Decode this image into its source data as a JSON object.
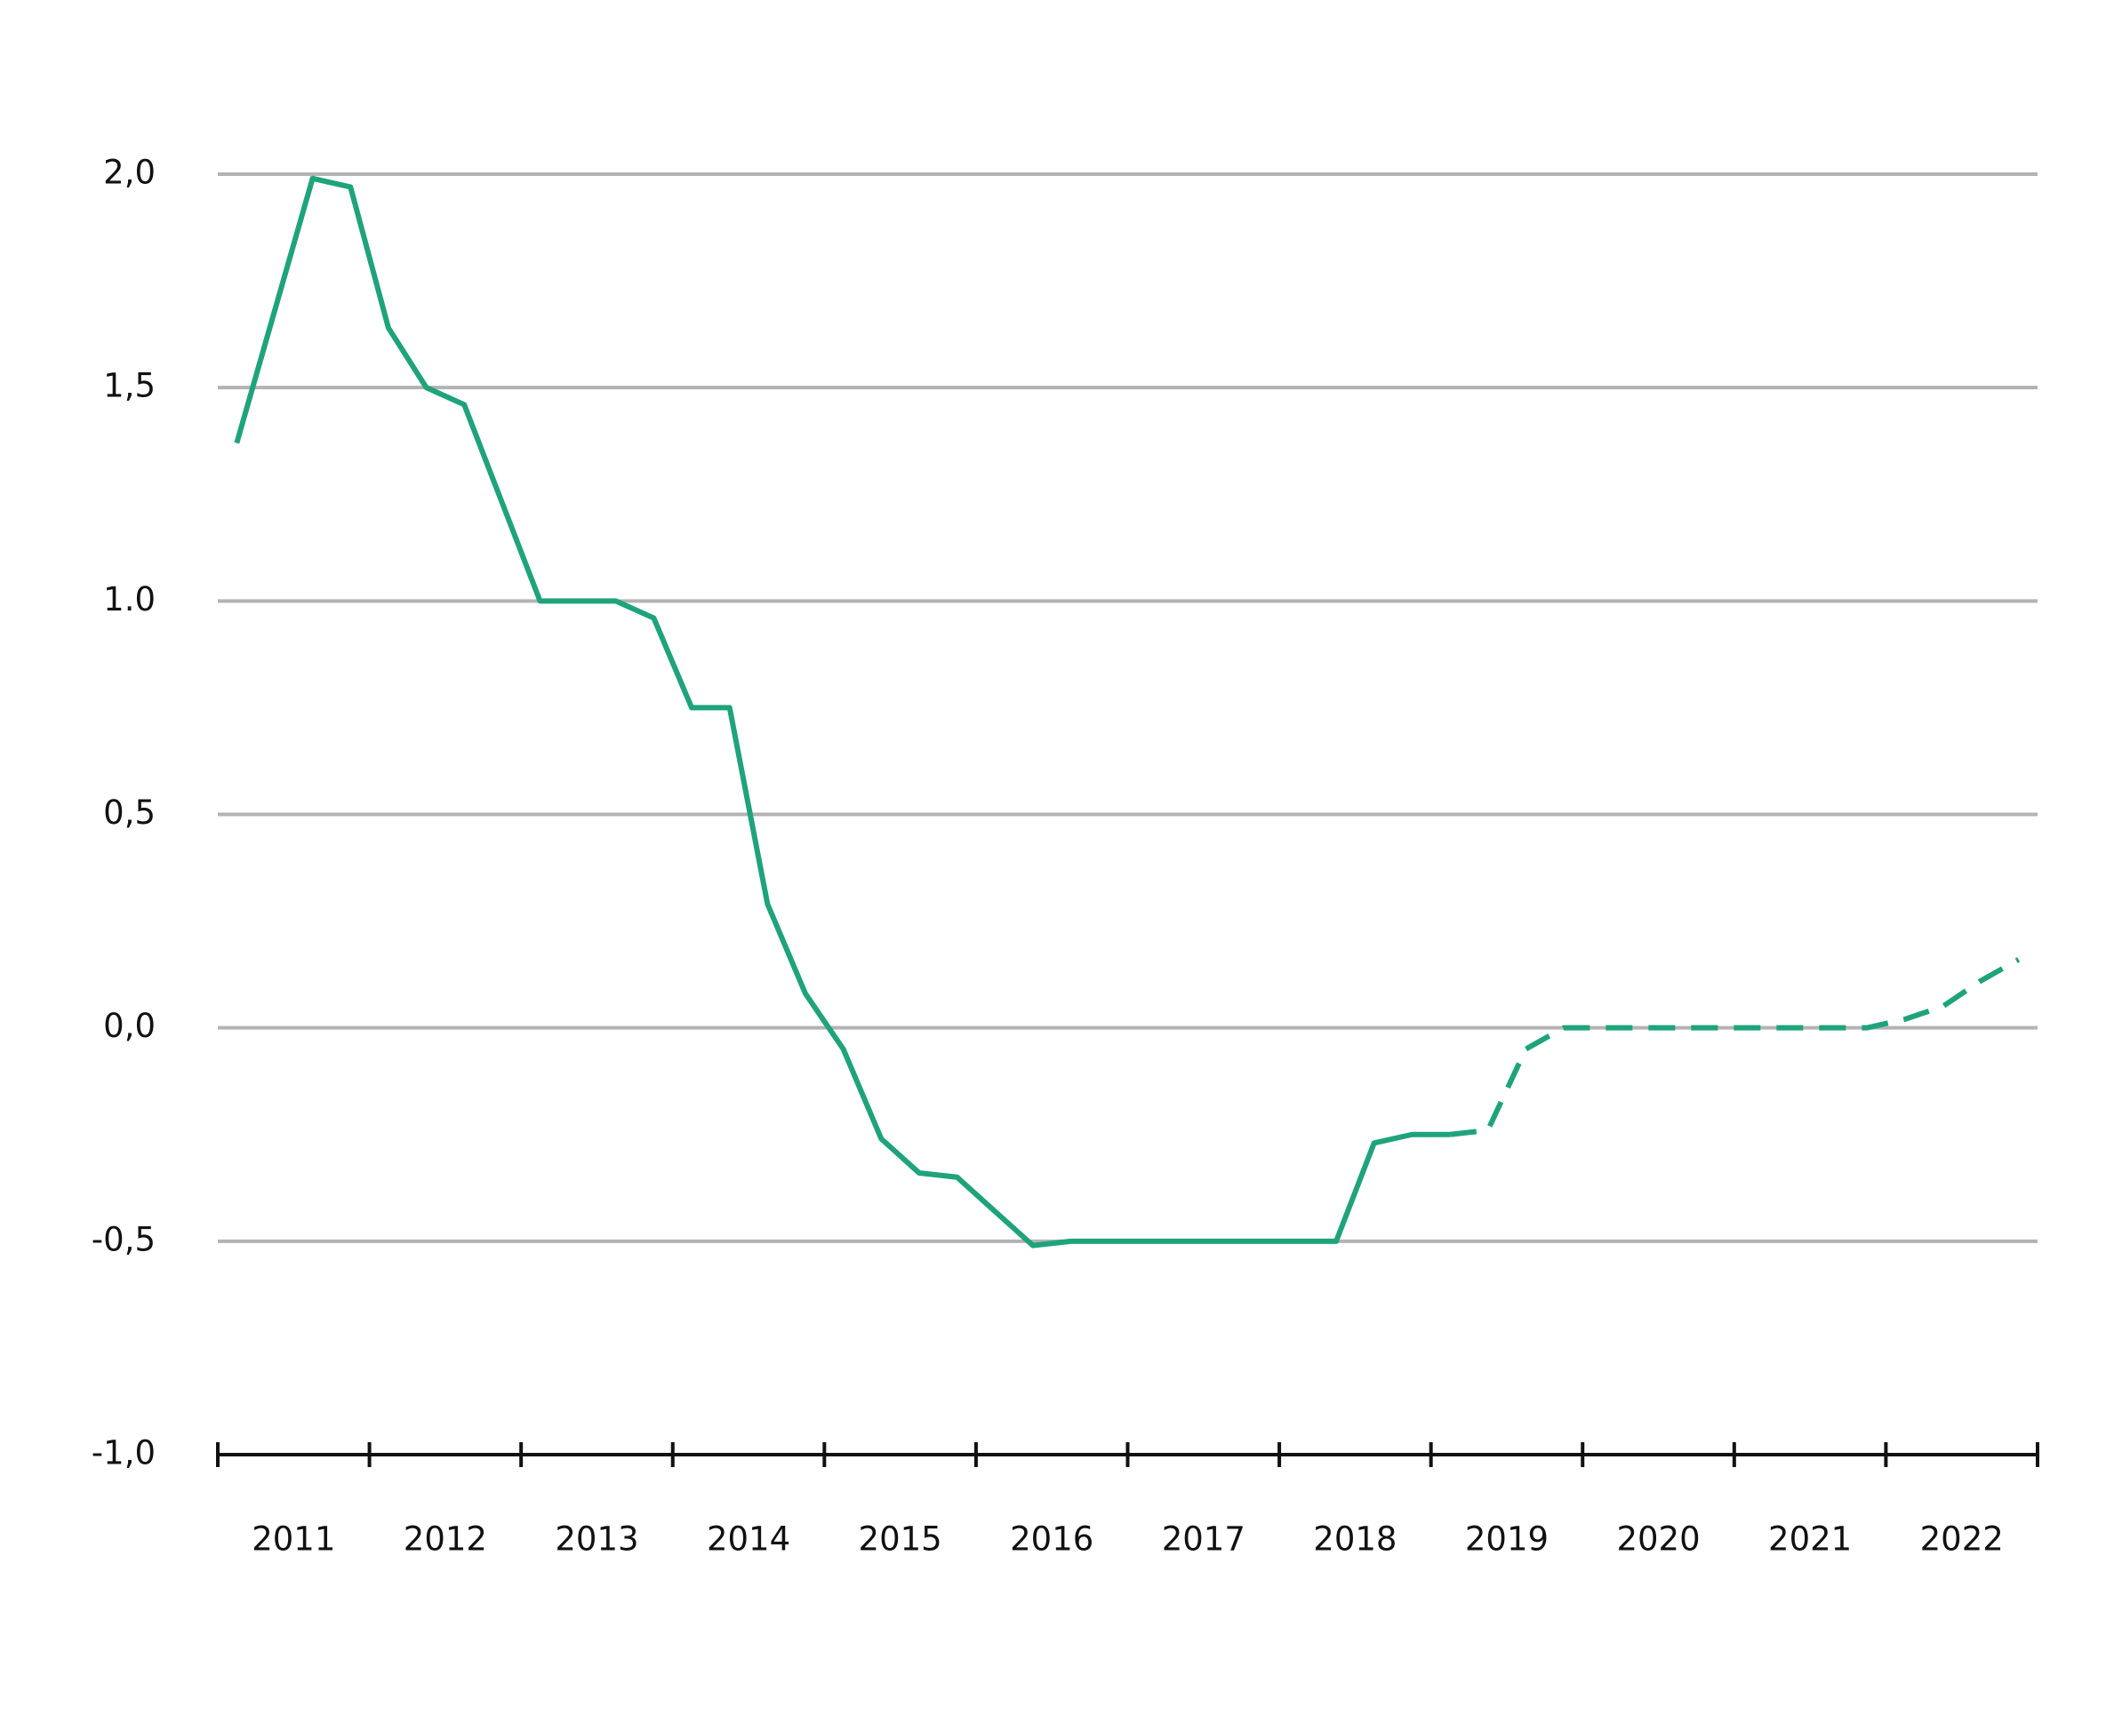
{
  "chart_data": {
    "type": "line",
    "series": [
      {
        "color": "#1fa37c",
        "style": "solid",
        "x": [
          2011.125,
          2011.375,
          2011.625,
          2011.875,
          2012.125,
          2012.375,
          2012.625,
          2012.875,
          2013.125,
          2013.375,
          2013.625,
          2013.875,
          2014.125,
          2014.375,
          2014.625,
          2014.875,
          2015.125,
          2015.375,
          2015.625,
          2015.875,
          2016.125,
          2016.375,
          2016.625,
          2016.875,
          2017.125,
          2017.375,
          2017.625,
          2017.875,
          2018.125,
          2018.375,
          2018.625,
          2018.875,
          2019.125
        ],
        "values": [
          1.37,
          1.68,
          1.99,
          1.97,
          1.64,
          1.5,
          1.46,
          1.23,
          1.0,
          1.0,
          1.0,
          0.96,
          0.75,
          0.75,
          0.29,
          0.08,
          -0.05,
          -0.26,
          -0.34,
          -0.35,
          -0.43,
          -0.51,
          -0.5,
          -0.5,
          -0.5,
          -0.5,
          -0.5,
          -0.5,
          -0.5,
          -0.5,
          -0.27,
          -0.25,
          -0.25
        ]
      },
      {
        "color": "#1fa37c",
        "style": "dashed",
        "x": [
          2019.125,
          2019.375,
          2019.625,
          2019.875,
          2020.125,
          2020.375,
          2020.625,
          2020.875,
          2021.125,
          2021.375,
          2021.625,
          2021.875,
          2022.125,
          2022.375,
          2022.625,
          2022.875
        ],
        "values": [
          -0.25,
          -0.24,
          -0.05,
          0,
          0,
          0,
          0,
          0,
          0,
          0,
          0,
          0,
          0.02,
          0.05,
          0.11,
          0.16
        ]
      }
    ],
    "xlim": [
      2011,
      2023
    ],
    "xticks": [
      {
        "value": 2011.5,
        "label": "2011"
      },
      {
        "value": 2012.5,
        "label": "2012"
      },
      {
        "value": 2013.5,
        "label": "2013"
      },
      {
        "value": 2014.5,
        "label": "2014"
      },
      {
        "value": 2015.5,
        "label": "2015"
      },
      {
        "value": 2016.5,
        "label": "2016"
      },
      {
        "value": 2017.5,
        "label": "2017"
      },
      {
        "value": 2018.5,
        "label": "2018"
      },
      {
        "value": 2019.5,
        "label": "2019"
      },
      {
        "value": 2020.5,
        "label": "2020"
      },
      {
        "value": 2021.5,
        "label": "2021"
      },
      {
        "value": 2022.5,
        "label": "2022"
      }
    ],
    "ylim": [
      -1,
      2
    ],
    "yticks": [
      {
        "value": 2,
        "label": "2,0"
      },
      {
        "value": 1.5,
        "label": "1,5"
      },
      {
        "value": 1,
        "label": "1.0"
      },
      {
        "value": 0.5,
        "label": "0,5"
      },
      {
        "value": 0,
        "label": "0,0"
      },
      {
        "value": -0.5,
        "label": "-0,5"
      },
      {
        "value": -1,
        "label": "-1,0"
      }
    ],
    "grid": true
  }
}
